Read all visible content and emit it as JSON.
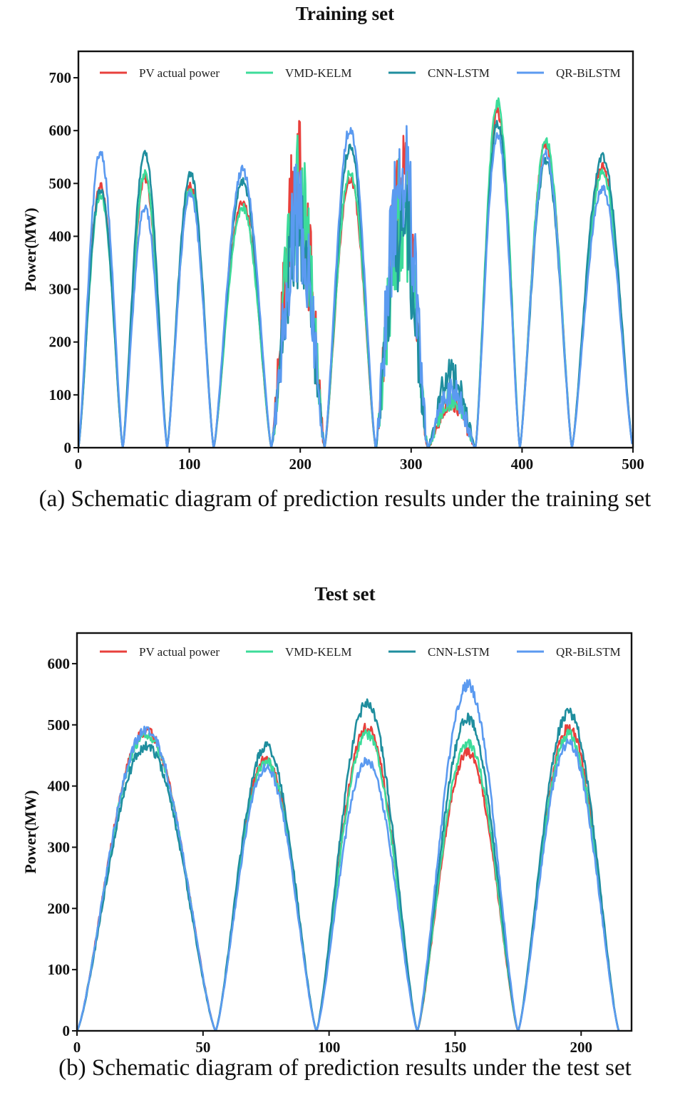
{
  "chart_data": [
    {
      "type": "line",
      "title": "Training set",
      "caption": "(a) Schematic diagram of prediction results under the training set",
      "xlabel": "",
      "ylabel": "Power(MW)",
      "xlim": [
        0,
        500
      ],
      "ylim": [
        0,
        750
      ],
      "xticks": [
        0,
        100,
        200,
        300,
        400,
        500
      ],
      "yticks": [
        0,
        100,
        200,
        300,
        400,
        500,
        600,
        700
      ],
      "legend": [
        "PV actual power",
        "VMD-KELM",
        "CNN-LSTM",
        "QR-BiLSTM"
      ],
      "legend_position": "top",
      "series": [
        {
          "name": "PV actual power",
          "color": "#e8403c",
          "days": [
            {
              "start": 0,
              "end": 40,
              "peak": 495
            },
            {
              "start": 40,
              "end": 80,
              "peak": 510
            },
            {
              "start": 80,
              "end": 122,
              "peak": 495
            },
            {
              "start": 122,
              "end": 174,
              "peak": 465
            },
            {
              "start": 174,
              "end": 222,
              "peak": 490,
              "noise": true
            },
            {
              "start": 222,
              "end": 268,
              "peak": 510
            },
            {
              "start": 268,
              "end": 315,
              "peak": 470,
              "noise": true
            },
            {
              "start": 315,
              "end": 358,
              "peak": 90,
              "noise": true
            },
            {
              "start": 358,
              "end": 398,
              "peak": 635
            },
            {
              "start": 398,
              "end": 445,
              "peak": 575
            },
            {
              "start": 445,
              "end": 500,
              "peak": 530
            }
          ]
        },
        {
          "name": "VMD-KELM",
          "color": "#3ddc9a",
          "days": [
            {
              "start": 0,
              "end": 40,
              "peak": 480
            },
            {
              "start": 40,
              "end": 80,
              "peak": 520
            },
            {
              "start": 80,
              "end": 122,
              "peak": 490
            },
            {
              "start": 122,
              "end": 174,
              "peak": 455
            },
            {
              "start": 174,
              "end": 222,
              "peak": 470,
              "noise": true
            },
            {
              "start": 222,
              "end": 268,
              "peak": 520
            },
            {
              "start": 268,
              "end": 315,
              "peak": 440,
              "noise": true
            },
            {
              "start": 315,
              "end": 358,
              "peak": 95,
              "noise": true
            },
            {
              "start": 358,
              "end": 398,
              "peak": 655
            },
            {
              "start": 398,
              "end": 445,
              "peak": 580
            },
            {
              "start": 445,
              "end": 500,
              "peak": 520
            }
          ]
        },
        {
          "name": "CNN-LSTM",
          "color": "#1f8e9e",
          "days": [
            {
              "start": 0,
              "end": 40,
              "peak": 490
            },
            {
              "start": 40,
              "end": 80,
              "peak": 560
            },
            {
              "start": 80,
              "end": 122,
              "peak": 520
            },
            {
              "start": 122,
              "end": 174,
              "peak": 505
            },
            {
              "start": 174,
              "end": 222,
              "peak": 400,
              "noise": true
            },
            {
              "start": 222,
              "end": 268,
              "peak": 570
            },
            {
              "start": 268,
              "end": 315,
              "peak": 420,
              "noise": true
            },
            {
              "start": 315,
              "end": 358,
              "peak": 140,
              "noise": true
            },
            {
              "start": 358,
              "end": 398,
              "peak": 615
            },
            {
              "start": 398,
              "end": 445,
              "peak": 540
            },
            {
              "start": 445,
              "end": 500,
              "peak": 550
            }
          ]
        },
        {
          "name": "QR-BiLSTM",
          "color": "#5b9af0",
          "days": [
            {
              "start": 0,
              "end": 40,
              "peak": 560
            },
            {
              "start": 40,
              "end": 80,
              "peak": 455
            },
            {
              "start": 80,
              "end": 122,
              "peak": 480
            },
            {
              "start": 122,
              "end": 174,
              "peak": 525
            },
            {
              "start": 174,
              "end": 222,
              "peak": 430,
              "noise": true
            },
            {
              "start": 222,
              "end": 268,
              "peak": 605
            },
            {
              "start": 268,
              "end": 315,
              "peak": 520,
              "noise": true
            },
            {
              "start": 315,
              "end": 358,
              "peak": 110,
              "noise": true
            },
            {
              "start": 358,
              "end": 398,
              "peak": 590
            },
            {
              "start": 398,
              "end": 445,
              "peak": 555
            },
            {
              "start": 445,
              "end": 500,
              "peak": 490
            }
          ]
        }
      ]
    },
    {
      "type": "line",
      "title": "Test set",
      "caption": "(b) Schematic diagram of prediction results under the test set",
      "xlabel": "",
      "ylabel": "Power(MW)",
      "xlim": [
        0,
        220
      ],
      "ylim": [
        0,
        650
      ],
      "xticks": [
        0,
        50,
        100,
        150,
        200
      ],
      "yticks": [
        0,
        100,
        200,
        300,
        400,
        500,
        600
      ],
      "legend": [
        "PV actual power",
        "VMD-KELM",
        "CNN-LSTM",
        "QR-BiLSTM"
      ],
      "legend_position": "top",
      "series": [
        {
          "name": "PV actual power",
          "color": "#e8403c",
          "days": [
            {
              "start": 0,
              "end": 55,
              "peak": 490
            },
            {
              "start": 55,
              "end": 95,
              "peak": 445
            },
            {
              "start": 95,
              "end": 135,
              "peak": 495
            },
            {
              "start": 135,
              "end": 175,
              "peak": 455
            },
            {
              "start": 175,
              "end": 215,
              "peak": 495
            }
          ]
        },
        {
          "name": "VMD-KELM",
          "color": "#3ddc9a",
          "days": [
            {
              "start": 0,
              "end": 55,
              "peak": 485
            },
            {
              "start": 55,
              "end": 95,
              "peak": 440
            },
            {
              "start": 95,
              "end": 135,
              "peak": 485
            },
            {
              "start": 135,
              "end": 175,
              "peak": 470
            },
            {
              "start": 175,
              "end": 215,
              "peak": 485
            }
          ]
        },
        {
          "name": "CNN-LSTM",
          "color": "#1f8e9e",
          "days": [
            {
              "start": 0,
              "end": 55,
              "peak": 465
            },
            {
              "start": 55,
              "end": 95,
              "peak": 465
            },
            {
              "start": 95,
              "end": 135,
              "peak": 535
            },
            {
              "start": 135,
              "end": 175,
              "peak": 510
            },
            {
              "start": 175,
              "end": 215,
              "peak": 520
            }
          ]
        },
        {
          "name": "QR-BiLSTM",
          "color": "#5b9af0",
          "days": [
            {
              "start": 0,
              "end": 55,
              "peak": 490
            },
            {
              "start": 55,
              "end": 95,
              "peak": 430
            },
            {
              "start": 95,
              "end": 135,
              "peak": 440
            },
            {
              "start": 135,
              "end": 175,
              "peak": 565
            },
            {
              "start": 175,
              "end": 215,
              "peak": 470
            }
          ]
        }
      ]
    }
  ]
}
